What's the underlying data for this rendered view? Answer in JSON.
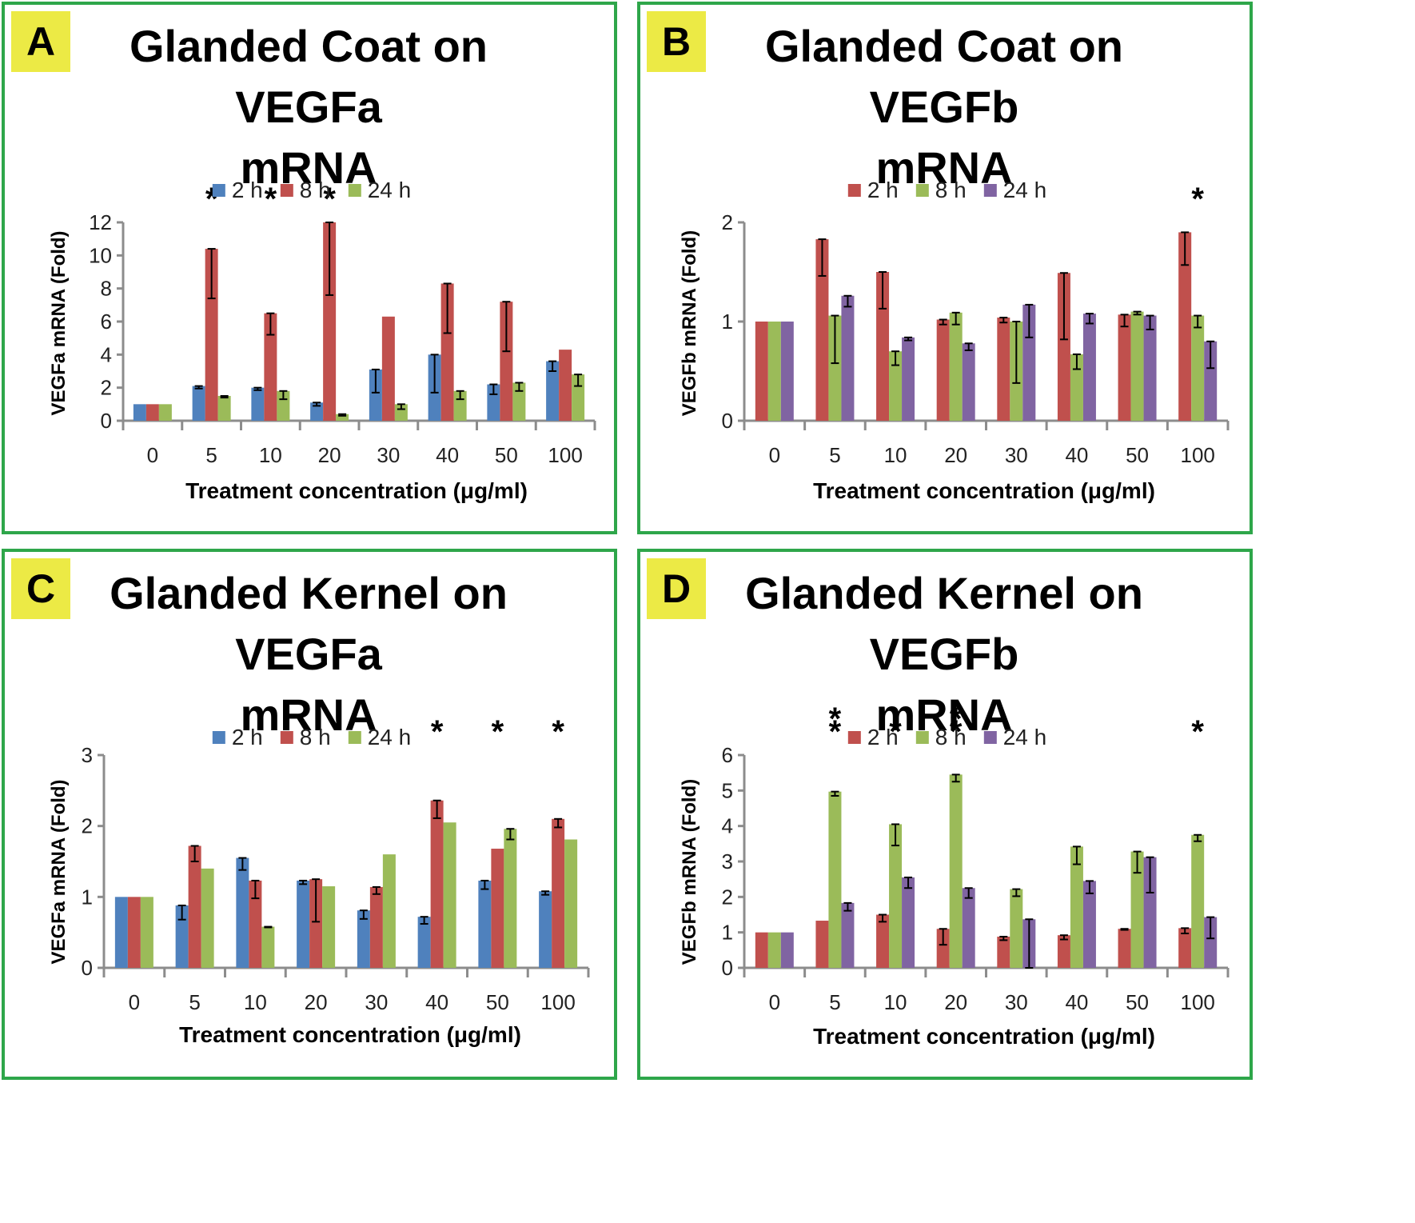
{
  "chart_data": [
    {
      "panel": "A",
      "type": "bar",
      "title_line1": "Glanded Coat on VEGFa",
      "title_line2": "mRNA",
      "ylabel": "VEGFa mRNA (Fold)",
      "xlabel": "Treatment concentration (μg/ml)",
      "categories": [
        "0",
        "5",
        "10",
        "20",
        "30",
        "40",
        "50",
        "100"
      ],
      "ylim": [
        0,
        12
      ],
      "yticks": [
        "0",
        "2",
        "4",
        "6",
        "8",
        "10",
        "12"
      ],
      "series": [
        {
          "name": "2 h",
          "color": "#4f81bd",
          "values": [
            1,
            2.1,
            2,
            1.1,
            3.1,
            4,
            2.2,
            3.6
          ],
          "errors": [
            0,
            0.15,
            0.15,
            0.2,
            1.4,
            2.3,
            0.6,
            0.6
          ]
        },
        {
          "name": "8 h",
          "color": "#c0504d",
          "values": [
            1,
            10.4,
            6.5,
            12,
            6.3,
            8.3,
            7.2,
            4.3
          ],
          "errors": [
            0,
            3.0,
            1.3,
            4.4,
            0,
            3.0,
            3.0,
            0
          ]
        },
        {
          "name": "24 h",
          "color": "#9bbb59",
          "values": [
            1,
            1.5,
            1.8,
            0.4,
            1,
            1.8,
            2.3,
            2.8
          ],
          "errors": [
            0,
            0.1,
            0.5,
            0.1,
            0.3,
            0.5,
            0.5,
            0.7
          ]
        }
      ],
      "significance": [
        {
          "category": "5",
          "label": "*"
        },
        {
          "category": "10",
          "label": "*"
        },
        {
          "category": "20",
          "label": "*"
        }
      ]
    },
    {
      "panel": "B",
      "type": "bar",
      "title_line1": "Glanded Coat on VEGFb",
      "title_line2": "mRNA",
      "ylabel": "VEGFb mRNA (Fold)",
      "xlabel": "Treatment concentration (μg/ml)",
      "categories": [
        "0",
        "5",
        "10",
        "20",
        "30",
        "40",
        "50",
        "100"
      ],
      "ylim": [
        0,
        2
      ],
      "yticks": [
        "0",
        "1",
        "2"
      ],
      "series": [
        {
          "name": "2 h",
          "color": "#c0504d",
          "values": [
            1,
            1.83,
            1.5,
            1.02,
            1.04,
            1.49,
            1.07,
            1.9
          ],
          "errors": [
            0,
            0.37,
            0.37,
            0.05,
            0.05,
            0.67,
            0.12,
            0.33
          ]
        },
        {
          "name": "8 h",
          "color": "#9bbb59",
          "values": [
            1,
            1.06,
            0.7,
            1.09,
            1.0,
            0.67,
            1.1,
            1.06
          ],
          "errors": [
            0,
            0.48,
            0.14,
            0.12,
            0.62,
            0.15,
            0.03,
            0.12
          ]
        },
        {
          "name": "24 h",
          "color": "#8064a2",
          "values": [
            1,
            1.26,
            0.84,
            0.78,
            1.17,
            1.08,
            1.06,
            0.8
          ],
          "errors": [
            0,
            0.11,
            0.03,
            0.07,
            0.33,
            0.1,
            0.14,
            0.27
          ]
        }
      ],
      "significance": [
        {
          "category": "100",
          "label": "*"
        }
      ]
    },
    {
      "panel": "C",
      "type": "bar",
      "title_line1": "Glanded Kernel on VEGFa",
      "title_line2": "mRNA",
      "ylabel": "VEGFa mRNA (Fold)",
      "xlabel": "Treatment concentration (μg/ml)",
      "categories": [
        "0",
        "5",
        "10",
        "20",
        "30",
        "40",
        "50",
        "100"
      ],
      "ylim": [
        0,
        3
      ],
      "yticks": [
        "0",
        "1",
        "2",
        "3"
      ],
      "series": [
        {
          "name": "2 h",
          "color": "#4f81bd",
          "values": [
            1,
            0.88,
            1.55,
            1.23,
            0.81,
            0.72,
            1.23,
            1.08
          ],
          "errors": [
            0,
            0.2,
            0.17,
            0.05,
            0.12,
            0.1,
            0.12,
            0.05
          ]
        },
        {
          "name": "8 h",
          "color": "#c0504d",
          "values": [
            1,
            1.72,
            1.23,
            1.25,
            1.14,
            2.36,
            1.68,
            2.1
          ],
          "errors": [
            0,
            0.22,
            0.25,
            0.6,
            0.1,
            0.25,
            0,
            0.12
          ]
        },
        {
          "name": "24 h",
          "color": "#9bbb59",
          "values": [
            1,
            1.4,
            0.58,
            1.15,
            1.6,
            2.05,
            1.96,
            1.81
          ],
          "errors": [
            0,
            0,
            0.01,
            0,
            0,
            0,
            0.15,
            0
          ]
        }
      ],
      "significance": [
        {
          "category": "40",
          "label": "*"
        },
        {
          "category": "50",
          "label": "*"
        },
        {
          "category": "100",
          "label": "*"
        }
      ]
    },
    {
      "panel": "D",
      "type": "bar",
      "title_line1": "Glanded Kernel on VEGFb",
      "title_line2": "mRNA",
      "ylabel": "VEGFb mRNA (Fold)",
      "xlabel": "Treatment concentration (μg/ml)",
      "categories": [
        "0",
        "5",
        "10",
        "20",
        "30",
        "40",
        "50",
        "100"
      ],
      "ylim": [
        0,
        6
      ],
      "yticks": [
        "0",
        "1",
        "2",
        "3",
        "4",
        "5",
        "6"
      ],
      "series": [
        {
          "name": "2 h",
          "color": "#c0504d",
          "values": [
            1,
            1.33,
            1.5,
            1.1,
            0.88,
            0.92,
            1.1,
            1.12
          ],
          "errors": [
            0,
            0,
            0.2,
            0.45,
            0.1,
            0.12,
            0.03,
            0.15
          ]
        },
        {
          "name": "8 h",
          "color": "#9bbb59",
          "values": [
            1,
            4.97,
            4.05,
            5.45,
            2.22,
            3.42,
            3.28,
            3.75
          ],
          "errors": [
            0,
            0.12,
            0.6,
            0.2,
            0.2,
            0.5,
            0.6,
            0.18
          ]
        },
        {
          "name": "24 h",
          "color": "#8064a2",
          "values": [
            1,
            1.83,
            2.55,
            2.25,
            1.37,
            2.45,
            3.12,
            1.43
          ],
          "errors": [
            0,
            0.22,
            0.3,
            0.28,
            1.37,
            0.35,
            1.0,
            0.6
          ]
        }
      ],
      "significance": [
        {
          "category": "5",
          "label": "**"
        },
        {
          "category": "10",
          "label": "*"
        },
        {
          "category": "20",
          "label": "**"
        },
        {
          "category": "100",
          "label": "*"
        }
      ]
    }
  ]
}
